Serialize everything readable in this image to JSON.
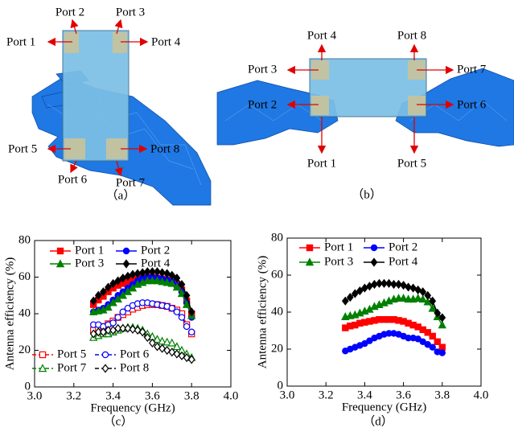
{
  "figures": {
    "a": {
      "caption": "（a）",
      "ports": [
        "Port 1",
        "Port 2",
        "Port 3",
        "Port 4",
        "Port 5",
        "Port 6",
        "Port 7",
        "Port 8"
      ]
    },
    "b": {
      "caption": "（b）",
      "ports": [
        "Port 1",
        "Port 2",
        "Port 3",
        "Port 4",
        "Port 5",
        "Port 6",
        "Port 7",
        "Port 8"
      ]
    }
  },
  "chart_data": [
    {
      "type": "line",
      "caption": "（c）",
      "xlabel": "Frequency (GHz)",
      "ylabel": "Antenna efficiency (%)",
      "x": [
        3.3,
        3.325,
        3.35,
        3.375,
        3.4,
        3.425,
        3.45,
        3.475,
        3.5,
        3.525,
        3.55,
        3.575,
        3.6,
        3.625,
        3.65,
        3.675,
        3.7,
        3.725,
        3.75,
        3.775,
        3.8
      ],
      "xlim": [
        3,
        4
      ],
      "xticks": [
        {
          "value": 3,
          "label": "3.0"
        },
        {
          "value": 3.2,
          "label": "3.2"
        },
        {
          "value": 3.4,
          "label": "3.4"
        },
        {
          "value": 3.6,
          "label": "3.6"
        },
        {
          "value": 3.8,
          "label": "3.8"
        },
        {
          "value": 4,
          "label": "4.0"
        }
      ],
      "ylim": [
        0,
        80
      ],
      "yticks": [
        0,
        20,
        40,
        60,
        80
      ],
      "series": [
        {
          "name": "Port 1",
          "color": "#ff0000",
          "marker": "square",
          "filled": true,
          "dashed": false,
          "values": [
            45,
            47.5,
            49.5,
            52,
            54,
            55.5,
            56.5,
            57.5,
            58.5,
            59,
            59.5,
            60,
            60,
            59.5,
            59,
            58.5,
            57.5,
            56,
            53,
            47,
            40
          ]
        },
        {
          "name": "Port 2",
          "color": "#0000ff",
          "marker": "circle",
          "filled": true,
          "dashed": false,
          "values": [
            41,
            42,
            43,
            45,
            47.5,
            50,
            52,
            54,
            56,
            58,
            59.5,
            60,
            60,
            59.5,
            59,
            58.5,
            57.5,
            55.5,
            52,
            46,
            38
          ]
        },
        {
          "name": "Port 3",
          "color": "#008000",
          "marker": "triangle",
          "filled": true,
          "dashed": false,
          "values": [
            41,
            41.5,
            42,
            43.5,
            46,
            48,
            50,
            52,
            54,
            56,
            57,
            58,
            58,
            58,
            57.5,
            57,
            56.5,
            54.5,
            51,
            45,
            39
          ]
        },
        {
          "name": "Port 4",
          "color": "#000000",
          "marker": "diamond",
          "filled": true,
          "dashed": false,
          "values": [
            47,
            50,
            52,
            54.5,
            56.5,
            58,
            59.5,
            60.5,
            61.5,
            62,
            62.5,
            63,
            63,
            63,
            62.5,
            62,
            61,
            59.5,
            56,
            50,
            41
          ]
        },
        {
          "name": "Port 5",
          "color": "#ff0000",
          "marker": "square",
          "filled": false,
          "dashed": true,
          "values": [
            31,
            32,
            33,
            34.5,
            36,
            38,
            39.5,
            41,
            42.5,
            43.5,
            44.5,
            45,
            45,
            45,
            44.5,
            44,
            43,
            42,
            40,
            34,
            29
          ]
        },
        {
          "name": "Port 6",
          "color": "#0000ff",
          "marker": "circle",
          "filled": false,
          "dashed": true,
          "values": [
            34,
            34,
            33,
            34,
            35,
            38,
            41,
            43,
            44.5,
            45.5,
            46,
            46,
            45.5,
            45,
            44.5,
            44,
            43,
            41,
            38,
            33,
            30
          ]
        },
        {
          "name": "Port 7",
          "color": "#008000",
          "marker": "triangle",
          "filled": false,
          "dashed": true,
          "values": [
            27,
            28,
            29,
            29,
            30,
            31,
            32,
            32.5,
            32.5,
            32,
            31,
            29,
            27.5,
            26,
            25,
            24.5,
            24,
            22,
            20,
            18,
            16
          ]
        },
        {
          "name": "Port 8",
          "color": "#000000",
          "marker": "diamond",
          "filled": false,
          "dashed": true,
          "values": [
            29,
            30,
            30,
            31,
            31,
            32,
            32,
            32,
            31.5,
            31,
            30,
            27,
            24,
            22,
            21,
            20,
            19,
            18,
            17,
            16,
            15
          ]
        }
      ]
    },
    {
      "type": "line",
      "caption": "（d）",
      "xlabel": "Frequency (GHz)",
      "ylabel": "Antenna efficiency (%)",
      "x": [
        3.3,
        3.325,
        3.35,
        3.375,
        3.4,
        3.425,
        3.45,
        3.475,
        3.5,
        3.525,
        3.55,
        3.575,
        3.6,
        3.625,
        3.65,
        3.675,
        3.7,
        3.725,
        3.75,
        3.775,
        3.8
      ],
      "xlim": [
        3,
        4
      ],
      "xticks": [
        {
          "value": 3,
          "label": "3.0"
        },
        {
          "value": 3.2,
          "label": "3.2"
        },
        {
          "value": 3.4,
          "label": "3.4"
        },
        {
          "value": 3.6,
          "label": "3.6"
        },
        {
          "value": 3.8,
          "label": "3.8"
        },
        {
          "value": 4,
          "label": "4.0"
        }
      ],
      "ylim": [
        0,
        80
      ],
      "yticks": [
        0,
        20,
        40,
        60,
        80
      ],
      "series": [
        {
          "name": "Port 1",
          "color": "#ff0000",
          "marker": "square",
          "filled": true,
          "dashed": false,
          "values": [
            31.5,
            32.5,
            33,
            34,
            34.5,
            35,
            35.5,
            36,
            36,
            36,
            36,
            35.5,
            35,
            34,
            33,
            32,
            30.5,
            29,
            27,
            24,
            21
          ]
        },
        {
          "name": "Port 2",
          "color": "#0000ff",
          "marker": "circle",
          "filled": true,
          "dashed": false,
          "values": [
            19,
            20,
            21,
            22,
            23,
            24.5,
            26,
            27,
            28,
            28.5,
            28.5,
            28,
            27,
            26,
            26,
            25.5,
            24,
            22.5,
            21,
            18.5,
            18
          ]
        },
        {
          "name": "Port 3",
          "color": "#008000",
          "marker": "triangle",
          "filled": true,
          "dashed": false,
          "values": [
            37.5,
            38,
            38.5,
            39.5,
            40.5,
            41.5,
            43,
            44,
            45,
            46,
            47,
            47.5,
            47.5,
            47,
            47,
            47.5,
            47,
            45.5,
            42,
            37.5,
            33
          ]
        },
        {
          "name": "Port 4",
          "color": "#000000",
          "marker": "diamond",
          "filled": true,
          "dashed": false,
          "values": [
            46,
            48,
            50,
            51.5,
            53,
            54,
            55,
            55.5,
            55.5,
            55.5,
            55,
            55,
            54.5,
            53.5,
            53,
            52,
            51,
            49,
            46,
            39.5,
            37
          ]
        }
      ]
    }
  ]
}
